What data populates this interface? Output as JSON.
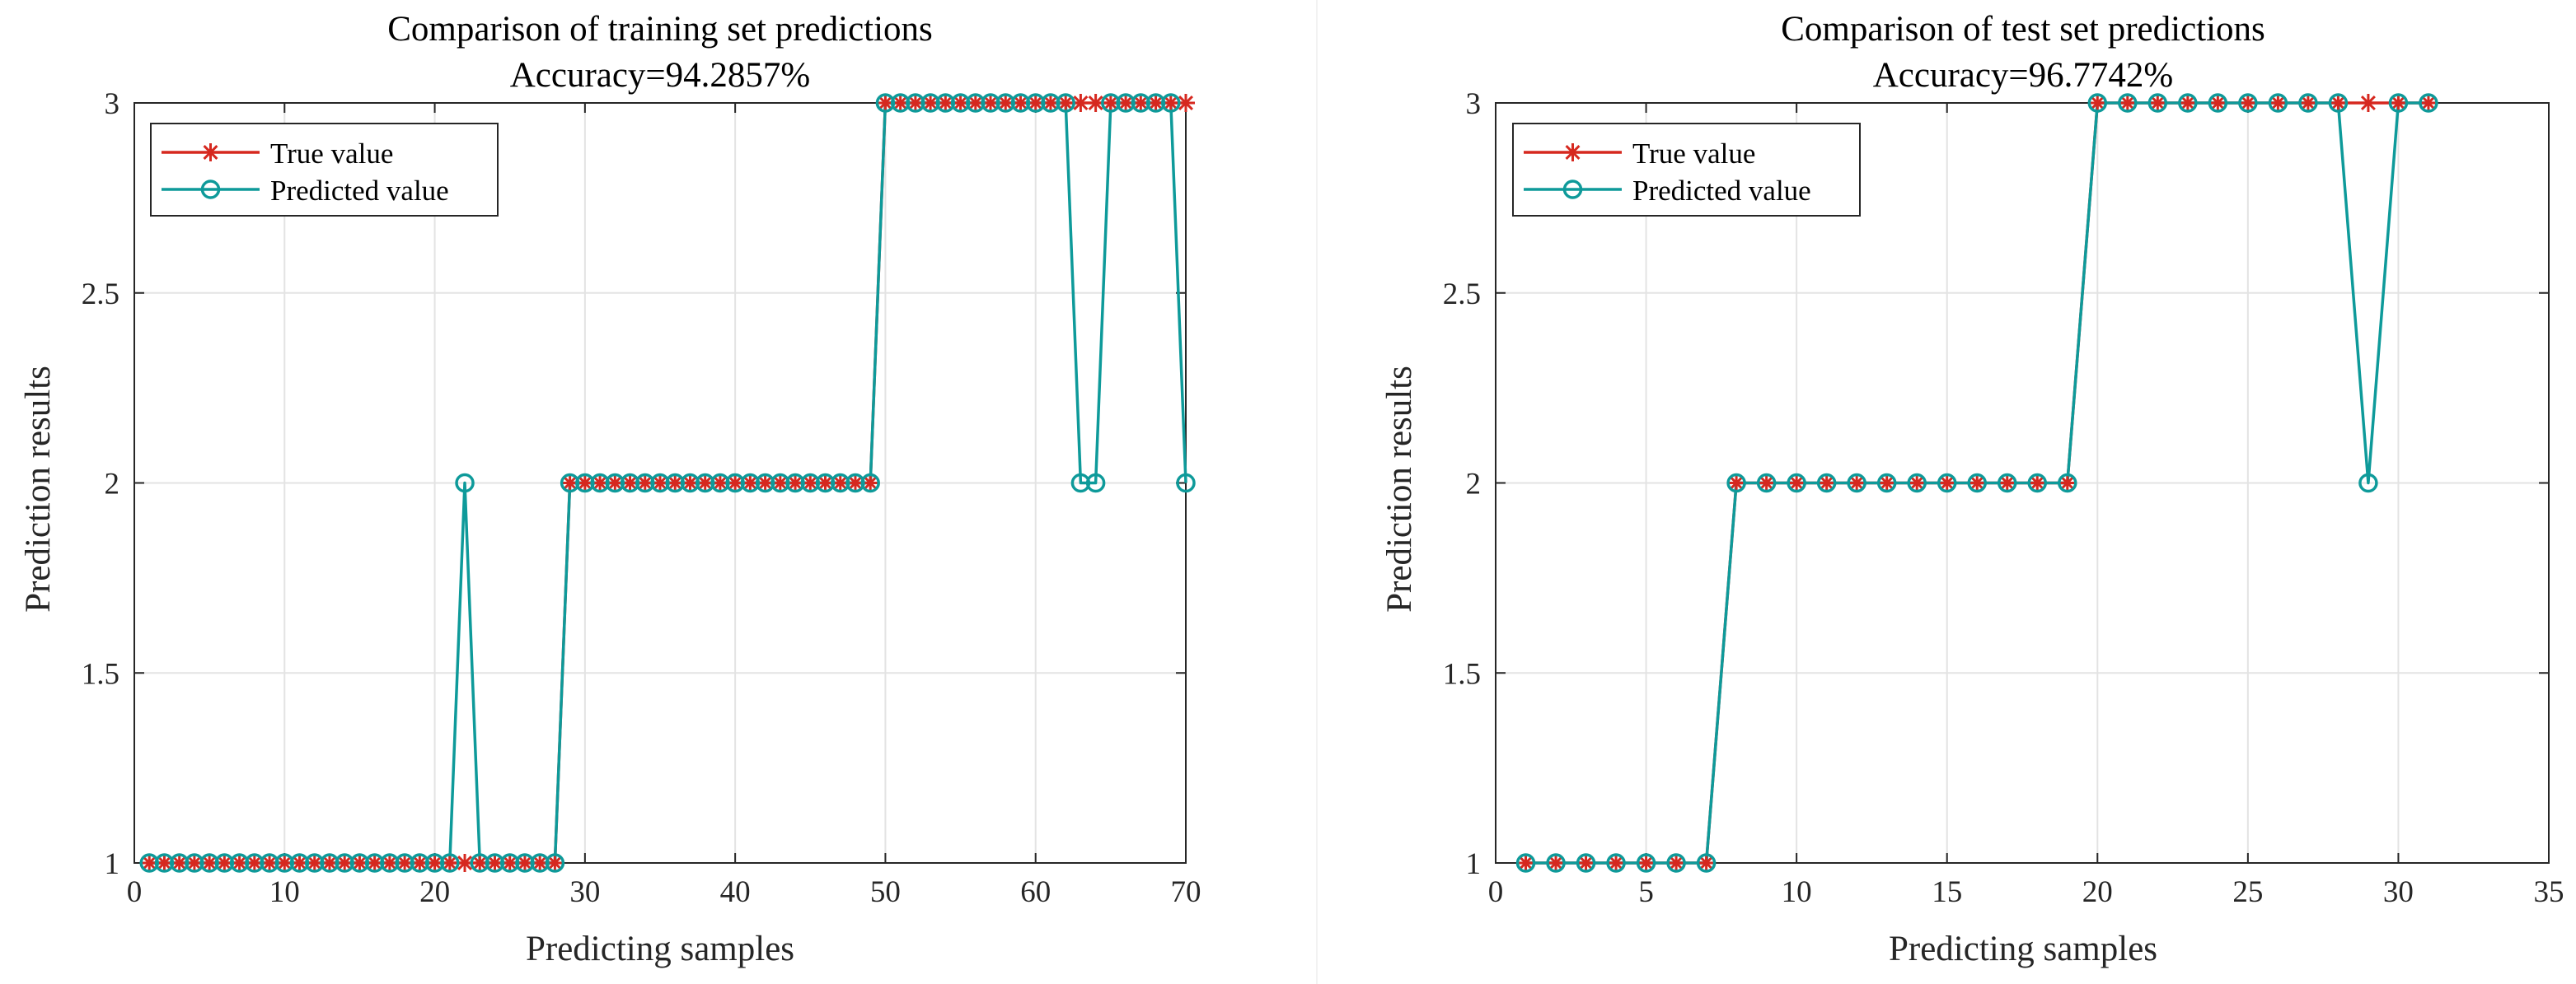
{
  "colors": {
    "true_value": "#d6281f",
    "predicted_value": "#0e9a9a"
  },
  "chart_data": [
    {
      "type": "line",
      "title": "Comparison of training set predictions",
      "subtitle": "Accuracy=94.2857%",
      "xlabel": "Predicting samples",
      "ylabel": "Prediction results",
      "xlim": [
        0,
        70
      ],
      "ylim": [
        1,
        3
      ],
      "xticks": [
        0,
        10,
        20,
        30,
        40,
        50,
        60,
        70
      ],
      "xtick_labels": [
        "0",
        "10",
        "20",
        "30",
        "40",
        "50",
        "60",
        "70"
      ],
      "yticks": [
        1,
        1.5,
        2,
        2.5,
        3
      ],
      "ytick_labels": [
        "1",
        "1.5",
        "2",
        "2.5",
        "3"
      ],
      "grid": true,
      "legend_position": "top-left",
      "series": [
        {
          "name": "True value",
          "marker": "asterisk",
          "x": [
            1,
            2,
            3,
            4,
            5,
            6,
            7,
            8,
            9,
            10,
            11,
            12,
            13,
            14,
            15,
            16,
            17,
            18,
            19,
            20,
            21,
            22,
            23,
            24,
            25,
            26,
            27,
            28,
            29,
            30,
            31,
            32,
            33,
            34,
            35,
            36,
            37,
            38,
            39,
            40,
            41,
            42,
            43,
            44,
            45,
            46,
            47,
            48,
            49,
            50,
            51,
            52,
            53,
            54,
            55,
            56,
            57,
            58,
            59,
            60,
            61,
            62,
            63,
            64,
            65,
            66,
            67,
            68,
            69,
            70
          ],
          "values": [
            1,
            1,
            1,
            1,
            1,
            1,
            1,
            1,
            1,
            1,
            1,
            1,
            1,
            1,
            1,
            1,
            1,
            1,
            1,
            1,
            1,
            1,
            1,
            1,
            1,
            1,
            1,
            1,
            2,
            2,
            2,
            2,
            2,
            2,
            2,
            2,
            2,
            2,
            2,
            2,
            2,
            2,
            2,
            2,
            2,
            2,
            2,
            2,
            2,
            3,
            3,
            3,
            3,
            3,
            3,
            3,
            3,
            3,
            3,
            3,
            3,
            3,
            3,
            3,
            3,
            3,
            3,
            3,
            3,
            3
          ]
        },
        {
          "name": "Predicted value",
          "marker": "circle",
          "x": [
            1,
            2,
            3,
            4,
            5,
            6,
            7,
            8,
            9,
            10,
            11,
            12,
            13,
            14,
            15,
            16,
            17,
            18,
            19,
            20,
            21,
            22,
            23,
            24,
            25,
            26,
            27,
            28,
            29,
            30,
            31,
            32,
            33,
            34,
            35,
            36,
            37,
            38,
            39,
            40,
            41,
            42,
            43,
            44,
            45,
            46,
            47,
            48,
            49,
            50,
            51,
            52,
            53,
            54,
            55,
            56,
            57,
            58,
            59,
            60,
            61,
            62,
            63,
            64,
            65,
            66,
            67,
            68,
            69,
            70
          ],
          "values": [
            1,
            1,
            1,
            1,
            1,
            1,
            1,
            1,
            1,
            1,
            1,
            1,
            1,
            1,
            1,
            1,
            1,
            1,
            1,
            1,
            1,
            2,
            1,
            1,
            1,
            1,
            1,
            1,
            2,
            2,
            2,
            2,
            2,
            2,
            2,
            2,
            2,
            2,
            2,
            2,
            2,
            2,
            2,
            2,
            2,
            2,
            2,
            2,
            2,
            3,
            3,
            3,
            3,
            3,
            3,
            3,
            3,
            3,
            3,
            3,
            3,
            3,
            2,
            2,
            3,
            3,
            3,
            3,
            3,
            2
          ]
        }
      ]
    },
    {
      "type": "line",
      "title": "Comparison of test set predictions",
      "subtitle": "Accuracy=96.7742%",
      "xlabel": "Predicting samples",
      "ylabel": "Prediction results",
      "xlim": [
        0,
        35
      ],
      "ylim": [
        1,
        3
      ],
      "xticks": [
        0,
        5,
        10,
        15,
        20,
        25,
        30,
        35
      ],
      "xtick_labels": [
        "0",
        "5",
        "10",
        "15",
        "20",
        "25",
        "30",
        "35"
      ],
      "yticks": [
        1,
        1.5,
        2,
        2.5,
        3
      ],
      "ytick_labels": [
        "1",
        "1.5",
        "2",
        "2.5",
        "3"
      ],
      "grid": true,
      "legend_position": "top-left",
      "series": [
        {
          "name": "True value",
          "marker": "asterisk",
          "x": [
            1,
            2,
            3,
            4,
            5,
            6,
            7,
            8,
            9,
            10,
            11,
            12,
            13,
            14,
            15,
            16,
            17,
            18,
            19,
            20,
            21,
            22,
            23,
            24,
            25,
            26,
            27,
            28,
            29,
            30,
            31
          ],
          "values": [
            1,
            1,
            1,
            1,
            1,
            1,
            1,
            2,
            2,
            2,
            2,
            2,
            2,
            2,
            2,
            2,
            2,
            2,
            2,
            3,
            3,
            3,
            3,
            3,
            3,
            3,
            3,
            3,
            3,
            3,
            3
          ]
        },
        {
          "name": "Predicted value",
          "marker": "circle",
          "x": [
            1,
            2,
            3,
            4,
            5,
            6,
            7,
            8,
            9,
            10,
            11,
            12,
            13,
            14,
            15,
            16,
            17,
            18,
            19,
            20,
            21,
            22,
            23,
            24,
            25,
            26,
            27,
            28,
            29,
            30,
            31
          ],
          "values": [
            1,
            1,
            1,
            1,
            1,
            1,
            1,
            2,
            2,
            2,
            2,
            2,
            2,
            2,
            2,
            2,
            2,
            2,
            2,
            3,
            3,
            3,
            3,
            3,
            3,
            3,
            3,
            3,
            2,
            3,
            3
          ]
        }
      ]
    }
  ]
}
